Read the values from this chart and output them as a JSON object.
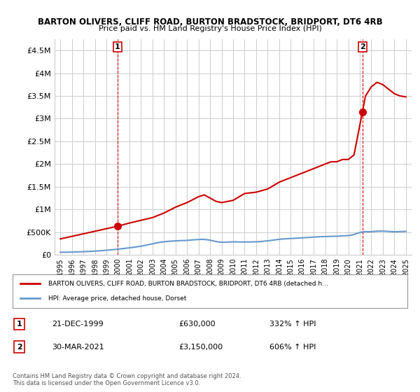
{
  "title": "BARTON OLIVERS, CLIFF ROAD, BURTON BRADSTOCK, BRIDPORT, DT6 4RB",
  "subtitle": "Price paid vs. HM Land Registry's House Price Index (HPI)",
  "bg_color": "#ffffff",
  "grid_color": "#cccccc",
  "sale1_date_x": 1999.97,
  "sale1_price": 630000,
  "sale1_label": "1",
  "sale2_date_x": 2021.23,
  "sale2_price": 3150000,
  "sale2_label": "2",
  "ylim": [
    0,
    4750000
  ],
  "xlim": [
    1994.5,
    2025.5
  ],
  "yticks": [
    0,
    500000,
    1000000,
    1500000,
    2000000,
    2500000,
    3000000,
    3500000,
    4000000,
    4500000
  ],
  "ytick_labels": [
    "£0",
    "£500K",
    "£1M",
    "£1.5M",
    "£2M",
    "£2.5M",
    "£3M",
    "£3.5M",
    "£4M",
    "£4.5M"
  ],
  "xticks": [
    1995,
    1996,
    1997,
    1998,
    1999,
    2000,
    2001,
    2002,
    2003,
    2004,
    2005,
    2006,
    2007,
    2008,
    2009,
    2010,
    2011,
    2012,
    2013,
    2014,
    2015,
    2016,
    2017,
    2018,
    2019,
    2020,
    2021,
    2022,
    2023,
    2024,
    2025
  ],
  "hpi_color": "#6699cc",
  "price_color": "#cc0000",
  "sale_marker_color": "#cc0000",
  "dashed_line_color": "#cc0000",
  "legend_box_color": "#eeeeee",
  "legend_line1": "BARTON OLIVERS, CLIFF ROAD, BURTON BRADSTOCK, BRIDPORT, DT6 4RB (detached h…",
  "legend_line2": "HPI: Average price, detached house, Dorset",
  "table_row1": [
    "1",
    "21-DEC-1999",
    "£630,000",
    "332% ↑ HPI"
  ],
  "table_row2": [
    "2",
    "30-MAR-2021",
    "£3,150,000",
    "606% ↑ HPI"
  ],
  "footer1": "Contains HM Land Registry data © Crown copyright and database right 2024.",
  "footer2": "This data is licensed under the Open Government Licence v3.0.",
  "hpi_x": [
    1995,
    1995.25,
    1995.5,
    1995.75,
    1996,
    1996.25,
    1996.5,
    1996.75,
    1997,
    1997.25,
    1997.5,
    1997.75,
    1998,
    1998.25,
    1998.5,
    1998.75,
    1999,
    1999.25,
    1999.5,
    1999.75,
    2000,
    2000.25,
    2000.5,
    2000.75,
    2001,
    2001.25,
    2001.5,
    2001.75,
    2002,
    2002.25,
    2002.5,
    2002.75,
    2003,
    2003.25,
    2003.5,
    2003.75,
    2004,
    2004.25,
    2004.5,
    2004.75,
    2005,
    2005.25,
    2005.5,
    2005.75,
    2006,
    2006.25,
    2006.5,
    2006.75,
    2007,
    2007.25,
    2007.5,
    2007.75,
    2008,
    2008.25,
    2008.5,
    2008.75,
    2009,
    2009.25,
    2009.5,
    2009.75,
    2010,
    2010.25,
    2010.5,
    2010.75,
    2011,
    2011.25,
    2011.5,
    2011.75,
    2012,
    2012.25,
    2012.5,
    2012.75,
    2013,
    2013.25,
    2013.5,
    2013.75,
    2014,
    2014.25,
    2014.5,
    2014.75,
    2015,
    2015.25,
    2015.5,
    2015.75,
    2016,
    2016.25,
    2016.5,
    2016.75,
    2017,
    2017.25,
    2017.5,
    2017.75,
    2018,
    2018.25,
    2018.5,
    2018.75,
    2019,
    2019.25,
    2019.5,
    2019.75,
    2020,
    2020.25,
    2020.5,
    2020.75,
    2021,
    2021.25,
    2021.5,
    2021.75,
    2022,
    2022.25,
    2022.5,
    2022.75,
    2023,
    2023.25,
    2023.5,
    2023.75,
    2024,
    2024.25,
    2024.5,
    2024.75,
    2025
  ],
  "hpi_y": [
    55000,
    56000,
    57000,
    58000,
    60000,
    62000,
    64000,
    66000,
    69000,
    72000,
    75000,
    78000,
    82000,
    86000,
    90000,
    95000,
    100000,
    106000,
    112000,
    118000,
    125000,
    132000,
    139000,
    146000,
    153000,
    162000,
    171000,
    180000,
    190000,
    202000,
    215000,
    228000,
    242000,
    256000,
    268000,
    278000,
    287000,
    294000,
    299000,
    303000,
    306000,
    310000,
    313000,
    315000,
    318000,
    323000,
    329000,
    333000,
    337000,
    340000,
    338000,
    332000,
    322000,
    308000,
    293000,
    282000,
    278000,
    277000,
    280000,
    283000,
    285000,
    285000,
    283000,
    282000,
    282000,
    283000,
    283000,
    285000,
    287000,
    290000,
    295000,
    301000,
    308000,
    316000,
    324000,
    333000,
    340000,
    347000,
    352000,
    356000,
    359000,
    362000,
    366000,
    370000,
    374000,
    378000,
    382000,
    386000,
    390000,
    394000,
    398000,
    400000,
    402000,
    405000,
    407000,
    408000,
    410000,
    413000,
    417000,
    420000,
    424000,
    432000,
    448000,
    470000,
    490000,
    505000,
    510000,
    508000,
    510000,
    515000,
    520000,
    522000,
    523000,
    520000,
    515000,
    510000,
    508000,
    510000,
    512000,
    514000,
    515000
  ],
  "price_x": [
    1995,
    1999.97,
    2001,
    2002,
    2003,
    2004,
    2005,
    2006,
    2007,
    2007.5,
    2008,
    2008.5,
    2009,
    2010,
    2011,
    2012,
    2013,
    2014,
    2015,
    2016,
    2017,
    2017.5,
    2018,
    2018.5,
    2019,
    2019.5,
    2020,
    2020.5,
    2021.23,
    2021.5,
    2022,
    2022.5,
    2023,
    2023.5,
    2024,
    2024.5,
    2025
  ],
  "price_y": [
    350000,
    630000,
    700000,
    760000,
    820000,
    920000,
    1050000,
    1150000,
    1280000,
    1320000,
    1250000,
    1180000,
    1150000,
    1200000,
    1350000,
    1380000,
    1450000,
    1600000,
    1700000,
    1800000,
    1900000,
    1950000,
    2000000,
    2050000,
    2050000,
    2100000,
    2100000,
    2200000,
    3150000,
    3500000,
    3700000,
    3800000,
    3750000,
    3650000,
    3550000,
    3500000,
    3480000
  ]
}
